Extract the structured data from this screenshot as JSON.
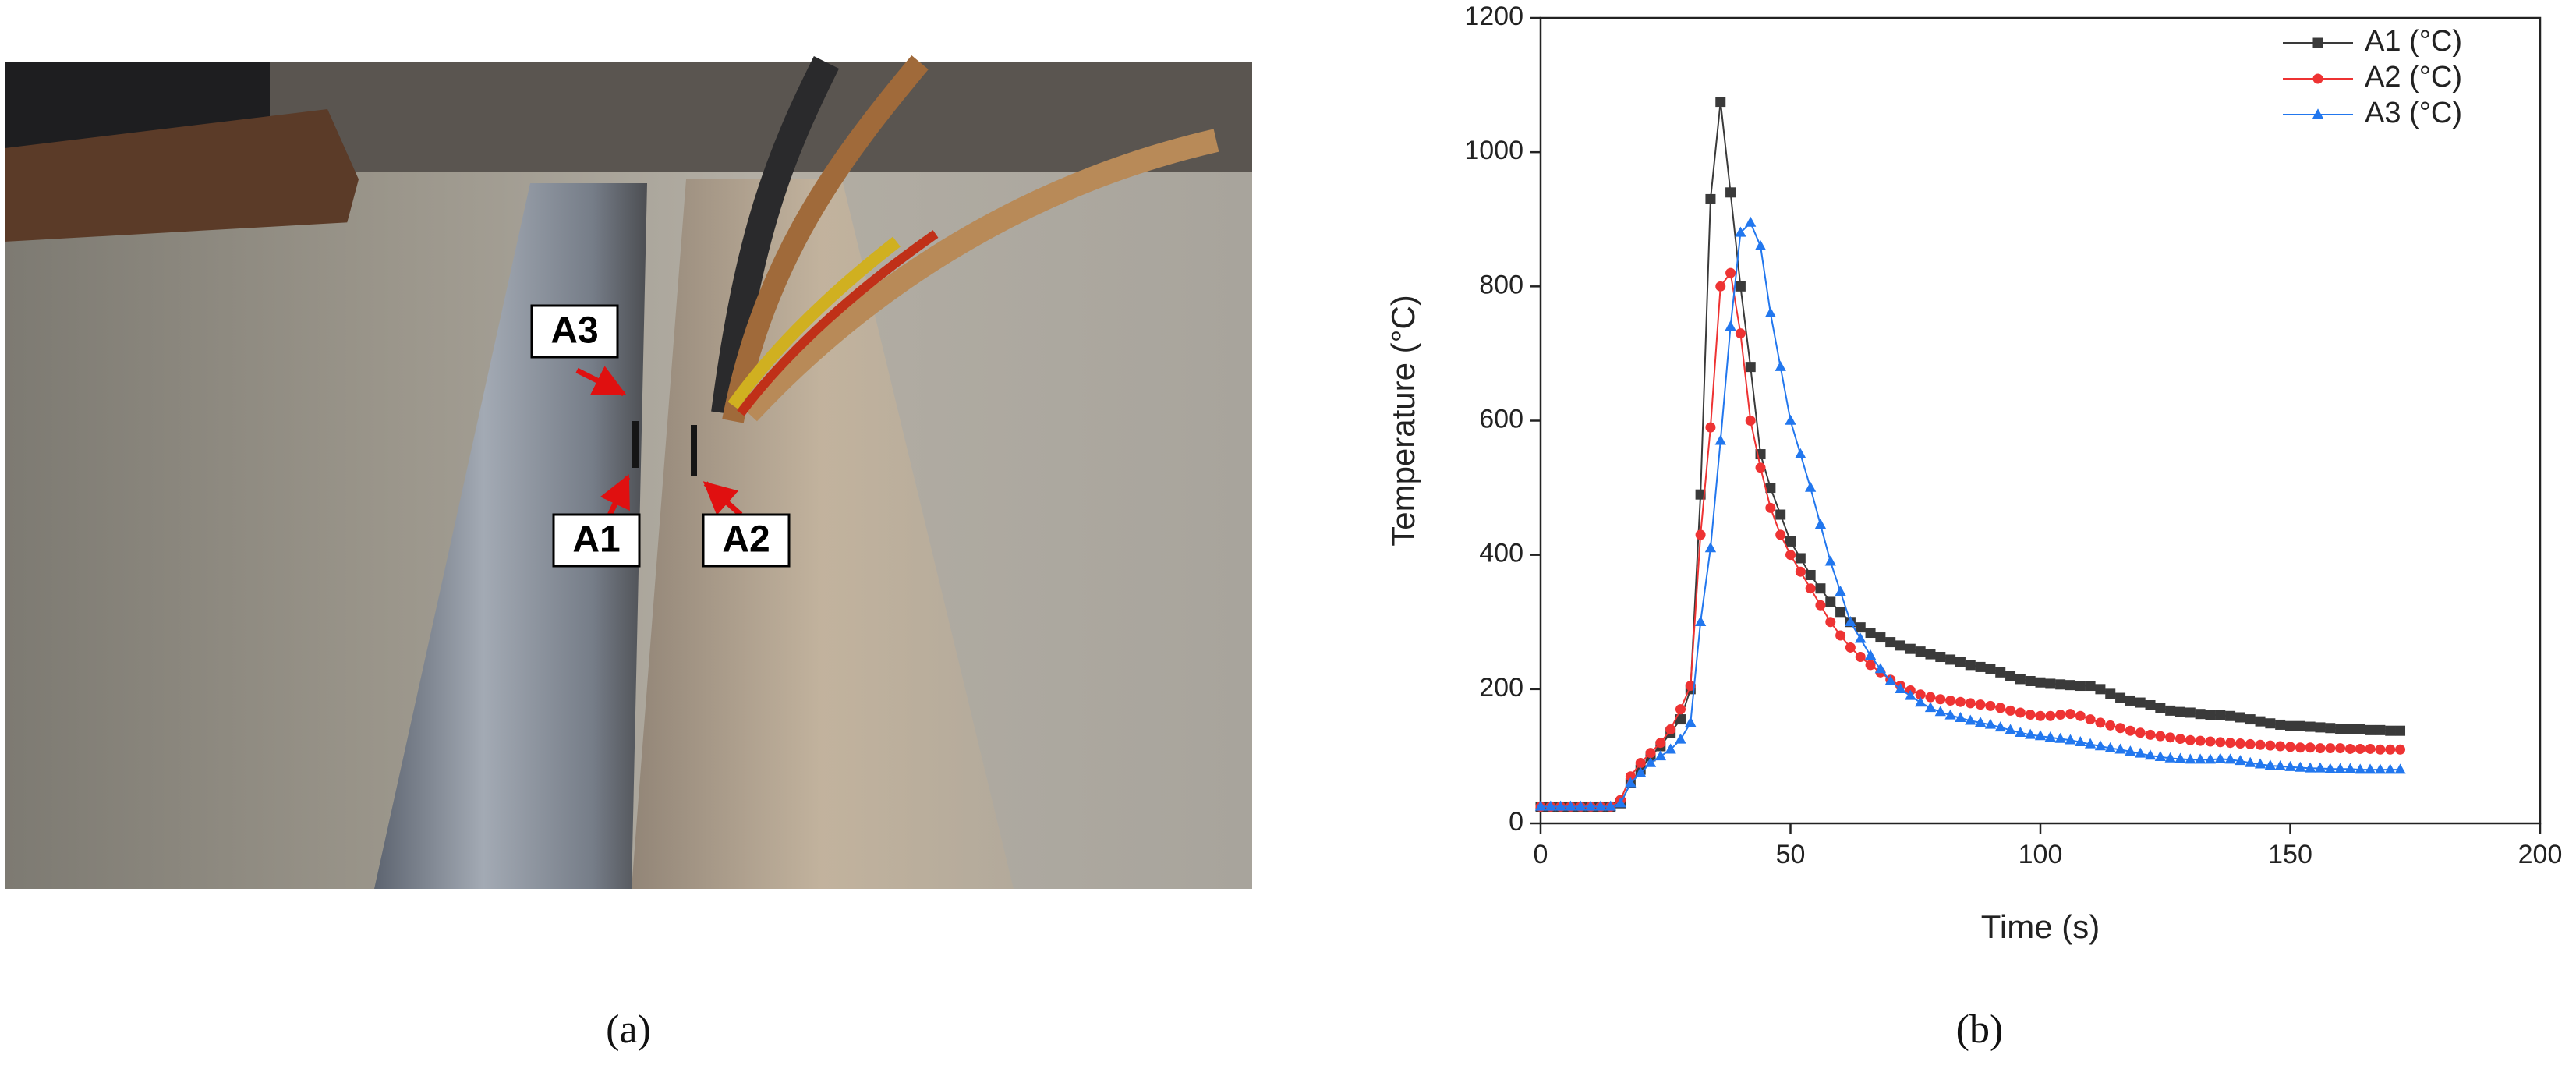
{
  "photo": {
    "labels": [
      "A3",
      "A1",
      "A2"
    ]
  },
  "captions": [
    "(a)",
    "(b)"
  ],
  "chart_data": {
    "type": "line",
    "x_label": "Time (s)",
    "y_label": "Temperature (°C)",
    "xlim": [
      0,
      200
    ],
    "xticks": [
      0,
      50,
      100,
      150,
      200
    ],
    "ylim": [
      0,
      1200
    ],
    "yticks": [
      0,
      200,
      400,
      600,
      800,
      1000,
      1200
    ],
    "legend": "upper right",
    "x": [
      0,
      2,
      4,
      6,
      8,
      10,
      12,
      14,
      16,
      18,
      20,
      22,
      24,
      26,
      28,
      30,
      32,
      34,
      36,
      38,
      40,
      42,
      44,
      46,
      48,
      50,
      52,
      54,
      56,
      58,
      60,
      62,
      64,
      66,
      68,
      70,
      72,
      74,
      76,
      78,
      80,
      82,
      84,
      86,
      88,
      90,
      92,
      94,
      96,
      98,
      100,
      102,
      104,
      106,
      108,
      110,
      112,
      114,
      116,
      118,
      120,
      122,
      124,
      126,
      128,
      130,
      132,
      134,
      136,
      138,
      140,
      142,
      144,
      146,
      148,
      150,
      152,
      154,
      156,
      158,
      160,
      162,
      164,
      166,
      168,
      170,
      172
    ],
    "series": [
      {
        "name": "A1 (°C)",
        "color": "#3a3a3a",
        "marker": "square",
        "values": [
          25,
          25,
          25,
          25,
          25,
          25,
          25,
          25,
          30,
          60,
          80,
          100,
          115,
          135,
          155,
          200,
          490,
          930,
          1075,
          940,
          800,
          680,
          550,
          500,
          460,
          420,
          395,
          370,
          350,
          330,
          315,
          300,
          292,
          284,
          277,
          270,
          265,
          260,
          256,
          252,
          248,
          244,
          240,
          236,
          233,
          230,
          225,
          220,
          215,
          212,
          210,
          208,
          207,
          206,
          205,
          205,
          200,
          193,
          187,
          183,
          180,
          176,
          172,
          168,
          166,
          165,
          163,
          162,
          161,
          160,
          158,
          155,
          152,
          149,
          147,
          145,
          145,
          144,
          143,
          142,
          141,
          140,
          140,
          139,
          139,
          138,
          138
        ]
      },
      {
        "name": "A2 (°C)",
        "color": "#ee3333",
        "marker": "circle",
        "values": [
          25,
          25,
          25,
          25,
          25,
          25,
          25,
          25,
          35,
          70,
          90,
          105,
          120,
          140,
          170,
          205,
          430,
          590,
          800,
          820,
          730,
          600,
          530,
          470,
          430,
          400,
          375,
          350,
          325,
          300,
          280,
          262,
          248,
          236,
          225,
          214,
          205,
          198,
          192,
          188,
          185,
          183,
          181,
          179,
          177,
          175,
          172,
          168,
          165,
          162,
          160,
          160,
          162,
          163,
          160,
          155,
          150,
          146,
          142,
          138,
          135,
          132,
          130,
          128,
          126,
          124,
          123,
          122,
          121,
          120,
          119,
          118,
          117,
          116,
          115,
          114,
          113,
          113,
          112,
          112,
          112,
          111,
          111,
          111,
          110,
          110,
          110
        ]
      },
      {
        "name": "A3 (°C)",
        "color": "#2277ee",
        "marker": "triangle",
        "values": [
          25,
          25,
          25,
          25,
          25,
          25,
          25,
          25,
          30,
          60,
          75,
          90,
          100,
          110,
          125,
          150,
          300,
          410,
          570,
          740,
          880,
          895,
          860,
          760,
          680,
          600,
          550,
          500,
          445,
          390,
          345,
          300,
          275,
          250,
          230,
          212,
          200,
          190,
          180,
          172,
          166,
          161,
          157,
          153,
          150,
          147,
          143,
          139,
          135,
          132,
          130,
          128,
          126,
          124,
          121,
          118,
          115,
          112,
          110,
          107,
          104,
          101,
          99,
          97,
          96,
          95,
          95,
          95,
          96,
          95,
          93,
          90,
          88,
          86,
          85,
          84,
          83,
          82,
          82,
          81,
          81,
          81,
          80,
          80,
          80,
          80,
          80
        ]
      }
    ]
  }
}
